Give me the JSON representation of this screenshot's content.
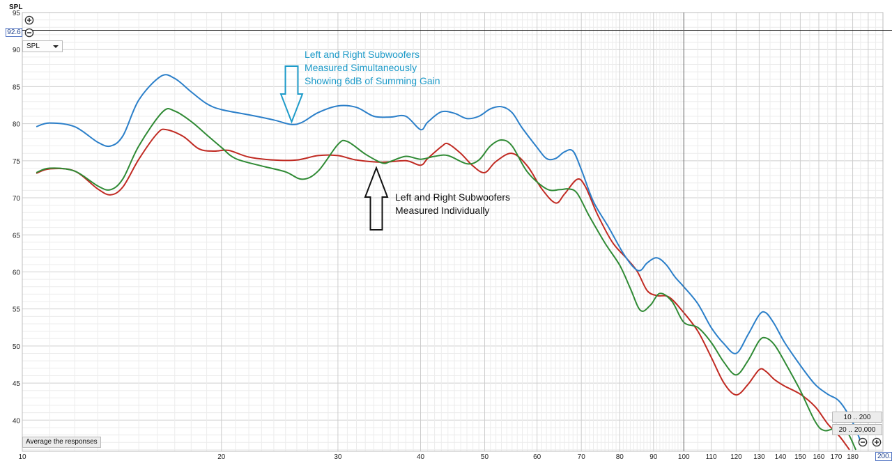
{
  "y_axis_unit": "SPL",
  "y_cursor_value": "92.6",
  "x_cursor_value": "200.0",
  "spl_dropdown": {
    "selected": "SPL"
  },
  "average_button_label": "Average the responses",
  "range_buttons": [
    "10 .. 200",
    "20 .. 20,000"
  ],
  "icons": {
    "zoom_in_top": "plus-circle-icon",
    "zoom_out_top": "minus-circle-icon",
    "zoom_out_bottom": "minus-circle-icon",
    "zoom_in_bottom": "plus-circle-icon"
  },
  "annotations": {
    "summed": [
      "Left and Right Subwoofers",
      "Measured Simultaneously",
      "Showing 6dB of Summing Gain"
    ],
    "individual": [
      "Left and Right Subwoofers",
      "Measured Individually"
    ]
  },
  "colors": {
    "summed": "#2b7fc9",
    "left": "#c02a22",
    "right": "#2f8a34",
    "annot_blue": "#1e9bc9",
    "annot_black": "#111111",
    "cursor_line": "#222222"
  },
  "chart_data": {
    "type": "line",
    "x_scale": "log",
    "xlim": [
      10,
      200
    ],
    "ylim": [
      35.8,
      95
    ],
    "x_tick_labels": [
      10,
      20,
      30,
      40,
      50,
      60,
      70,
      80,
      90,
      100,
      110,
      120,
      130,
      140,
      150,
      160,
      170,
      180
    ],
    "y_tick_labels": [
      40,
      45,
      50,
      55,
      60,
      65,
      70,
      75,
      80,
      85,
      90,
      95
    ],
    "grid": true,
    "cursor": {
      "x": 200,
      "y": 92.6
    },
    "series": [
      {
        "key": "summed",
        "points": [
          [
            10.5,
            79.6
          ],
          [
            11,
            80.1
          ],
          [
            12,
            79.6
          ],
          [
            13,
            77.5
          ],
          [
            13.6,
            77.0
          ],
          [
            14.2,
            78.4
          ],
          [
            15,
            83.2
          ],
          [
            16.2,
            86.4
          ],
          [
            17,
            86.1
          ],
          [
            18,
            84.3
          ],
          [
            19,
            82.7
          ],
          [
            20,
            81.9
          ],
          [
            22,
            81.2
          ],
          [
            24,
            80.5
          ],
          [
            25.5,
            79.9
          ],
          [
            26.5,
            80.2
          ],
          [
            28,
            81.5
          ],
          [
            30,
            82.4
          ],
          [
            32,
            82.2
          ],
          [
            34,
            81.0
          ],
          [
            36,
            80.9
          ],
          [
            38,
            81.0
          ],
          [
            40,
            79.2
          ],
          [
            41,
            80.2
          ],
          [
            43,
            81.6
          ],
          [
            45,
            81.4
          ],
          [
            47,
            80.7
          ],
          [
            49,
            81.0
          ],
          [
            51,
            82.0
          ],
          [
            53,
            82.3
          ],
          [
            55,
            81.5
          ],
          [
            57,
            79.4
          ],
          [
            60,
            76.8
          ],
          [
            62,
            75.3
          ],
          [
            64,
            75.3
          ],
          [
            66,
            76.2
          ],
          [
            68,
            76.3
          ],
          [
            70,
            73.8
          ],
          [
            73,
            69.5
          ],
          [
            77,
            66.0
          ],
          [
            81,
            62.5
          ],
          [
            84,
            60.6
          ],
          [
            86,
            60.2
          ],
          [
            88,
            61.2
          ],
          [
            91,
            61.9
          ],
          [
            94,
            61.0
          ],
          [
            97,
            59.3
          ],
          [
            100,
            58.0
          ],
          [
            105,
            55.7
          ],
          [
            110,
            52.5
          ],
          [
            115,
            50.3
          ],
          [
            120,
            49.0
          ],
          [
            125,
            51.5
          ],
          [
            130,
            54.2
          ],
          [
            133,
            54.5
          ],
          [
            137,
            53.0
          ],
          [
            142,
            50.5
          ],
          [
            150,
            47.4
          ],
          [
            158,
            44.8
          ],
          [
            165,
            43.5
          ],
          [
            172,
            42.5
          ],
          [
            180,
            39.7
          ],
          [
            186,
            36.6
          ]
        ]
      },
      {
        "key": "left",
        "points": [
          [
            10.5,
            73.3
          ],
          [
            11,
            73.9
          ],
          [
            12,
            73.6
          ],
          [
            13,
            71.2
          ],
          [
            13.6,
            70.4
          ],
          [
            14.2,
            71.5
          ],
          [
            15,
            75.2
          ],
          [
            16,
            78.7
          ],
          [
            16.5,
            79.2
          ],
          [
            17.5,
            78.3
          ],
          [
            18.5,
            76.6
          ],
          [
            19.5,
            76.3
          ],
          [
            20.5,
            76.4
          ],
          [
            22,
            75.5
          ],
          [
            24,
            75.1
          ],
          [
            26,
            75.1
          ],
          [
            28,
            75.7
          ],
          [
            30,
            75.7
          ],
          [
            32,
            75.1
          ],
          [
            35,
            74.8
          ],
          [
            38,
            75.0
          ],
          [
            40,
            74.4
          ],
          [
            41,
            75.3
          ],
          [
            43,
            76.9
          ],
          [
            44,
            77.3
          ],
          [
            46,
            76.0
          ],
          [
            48,
            74.3
          ],
          [
            50,
            73.4
          ],
          [
            52,
            74.9
          ],
          [
            55,
            76.0
          ],
          [
            58,
            74.3
          ],
          [
            61,
            71.2
          ],
          [
            64,
            69.3
          ],
          [
            66,
            70.5
          ],
          [
            69,
            72.5
          ],
          [
            71,
            71.5
          ],
          [
            74,
            67.8
          ],
          [
            78,
            64.0
          ],
          [
            82,
            61.8
          ],
          [
            85,
            60.1
          ],
          [
            88,
            57.5
          ],
          [
            91,
            56.8
          ],
          [
            95,
            56.6
          ],
          [
            100,
            54.5
          ],
          [
            105,
            52.0
          ],
          [
            110,
            48.5
          ],
          [
            115,
            45.0
          ],
          [
            120,
            43.4
          ],
          [
            125,
            44.8
          ],
          [
            130,
            46.8
          ],
          [
            133,
            46.6
          ],
          [
            137,
            45.5
          ],
          [
            142,
            44.6
          ],
          [
            150,
            43.5
          ],
          [
            158,
            41.8
          ],
          [
            165,
            39.5
          ],
          [
            172,
            37.8
          ],
          [
            178,
            36.0
          ]
        ]
      },
      {
        "key": "right",
        "points": [
          [
            10.5,
            73.4
          ],
          [
            11,
            74.0
          ],
          [
            12,
            73.6
          ],
          [
            13,
            71.6
          ],
          [
            13.6,
            71.1
          ],
          [
            14.2,
            72.6
          ],
          [
            15,
            77.0
          ],
          [
            16.3,
            81.6
          ],
          [
            17,
            81.7
          ],
          [
            18,
            80.3
          ],
          [
            19,
            78.5
          ],
          [
            20,
            76.8
          ],
          [
            21,
            75.3
          ],
          [
            23,
            74.3
          ],
          [
            25,
            73.5
          ],
          [
            26.5,
            72.5
          ],
          [
            28,
            73.6
          ],
          [
            30,
            77.2
          ],
          [
            31,
            77.6
          ],
          [
            33,
            75.9
          ],
          [
            35,
            74.7
          ],
          [
            36,
            74.9
          ],
          [
            38,
            75.6
          ],
          [
            40,
            75.2
          ],
          [
            42,
            75.6
          ],
          [
            44,
            75.7
          ],
          [
            47,
            74.6
          ],
          [
            49,
            75.1
          ],
          [
            51,
            77.0
          ],
          [
            53,
            77.8
          ],
          [
            55,
            77.0
          ],
          [
            58,
            73.5
          ],
          [
            62,
            71.2
          ],
          [
            65,
            71.1
          ],
          [
            67,
            71.2
          ],
          [
            69,
            70.6
          ],
          [
            72,
            67.5
          ],
          [
            76,
            63.9
          ],
          [
            80,
            60.9
          ],
          [
            83,
            57.8
          ],
          [
            86,
            54.8
          ],
          [
            89,
            55.5
          ],
          [
            92,
            57.1
          ],
          [
            96,
            56.0
          ],
          [
            100,
            53.2
          ],
          [
            105,
            52.5
          ],
          [
            110,
            50.5
          ],
          [
            115,
            47.8
          ],
          [
            120,
            46.1
          ],
          [
            125,
            48.0
          ],
          [
            130,
            50.7
          ],
          [
            133,
            51.1
          ],
          [
            137,
            50.2
          ],
          [
            142,
            47.9
          ],
          [
            150,
            44.0
          ],
          [
            158,
            39.8
          ],
          [
            163,
            38.6
          ],
          [
            170,
            38.9
          ],
          [
            176,
            38.6
          ],
          [
            182,
            36.0
          ]
        ]
      }
    ]
  }
}
